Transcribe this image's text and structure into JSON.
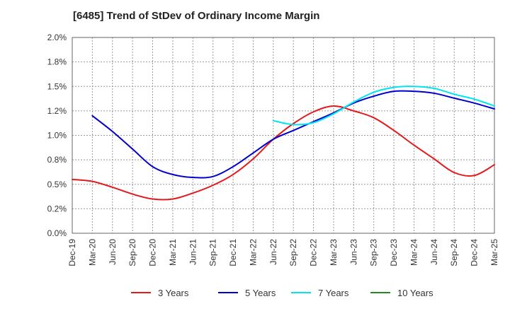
{
  "chart_data": {
    "type": "line",
    "title": "[6485]  Trend of StDev of Ordinary Income Margin",
    "xlabel": "",
    "ylabel": "",
    "y_ticks": [
      "0.0%",
      "0.2%",
      "0.5%",
      "0.8%",
      "1.0%",
      "1.2%",
      "1.5%",
      "1.8%",
      "2.0%"
    ],
    "y_tick_values": [
      0,
      0.25,
      0.5,
      0.75,
      1.0,
      1.25,
      1.5,
      1.75,
      2.0
    ],
    "ylim": [
      0,
      2.0
    ],
    "x_ticks": [
      "Dec-19",
      "Mar-20",
      "Jun-20",
      "Sep-20",
      "Dec-20",
      "Mar-21",
      "Jun-21",
      "Sep-21",
      "Dec-21",
      "Mar-22",
      "Jun-22",
      "Sep-22",
      "Dec-22",
      "Mar-23",
      "Jun-23",
      "Sep-23",
      "Dec-23",
      "Mar-24",
      "Jun-24",
      "Sep-24",
      "Dec-24",
      "Mar-25"
    ],
    "grid": true,
    "legend_position": "bottom",
    "series": [
      {
        "name": "3 Years",
        "color": "#e31a1c",
        "values": [
          0.55,
          0.53,
          0.47,
          0.4,
          0.35,
          0.35,
          0.41,
          0.49,
          0.6,
          0.76,
          0.96,
          1.12,
          1.24,
          1.3,
          1.25,
          1.18,
          1.05,
          0.9,
          0.76,
          0.62,
          0.59,
          0.7
        ]
      },
      {
        "name": "5 Years",
        "color": "#0000cc",
        "values": [
          null,
          1.2,
          1.04,
          0.86,
          0.68,
          0.6,
          0.57,
          0.58,
          0.68,
          0.82,
          0.96,
          1.05,
          1.14,
          1.23,
          1.33,
          1.4,
          1.45,
          1.45,
          1.43,
          1.38,
          1.33,
          1.27
        ]
      },
      {
        "name": "7 Years",
        "color": "#00e5ee",
        "values": [
          null,
          null,
          null,
          null,
          null,
          null,
          null,
          null,
          null,
          null,
          1.15,
          1.11,
          1.13,
          1.22,
          1.34,
          1.44,
          1.49,
          1.5,
          1.48,
          1.42,
          1.37,
          1.3
        ]
      },
      {
        "name": "10 Years",
        "color": "#228b22",
        "values": []
      }
    ]
  }
}
